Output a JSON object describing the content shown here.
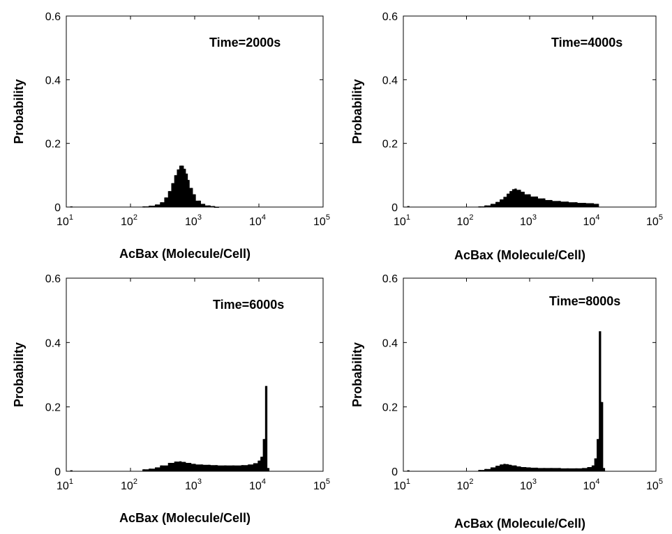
{
  "chart_data": [
    {
      "type": "bar",
      "annotation": "Time=2000s",
      "xlabel": "AcBax (Molecule/Cell)",
      "ylabel": "Probability",
      "xscale": "log",
      "xlim": [
        10,
        100000
      ],
      "ylim": [
        0,
        0.6
      ],
      "xticks": [
        "10",
        "2",
        "10",
        "3",
        "10",
        "4",
        "10",
        "5"
      ],
      "xtick_labels": [
        {
          "base": "10",
          "exp": "1"
        },
        {
          "base": "10",
          "exp": "2"
        },
        {
          "base": "10",
          "exp": "3"
        },
        {
          "base": "10",
          "exp": "4"
        },
        {
          "base": "10",
          "exp": "5"
        }
      ],
      "yticks": [
        "0",
        "0.2",
        "0.4",
        "0.6"
      ],
      "x": [
        12,
        160,
        200,
        250,
        300,
        350,
        400,
        450,
        500,
        550,
        600,
        650,
        700,
        750,
        800,
        900,
        1000,
        1200,
        1400,
        1700,
        2000,
        2300
      ],
      "y": [
        0.002,
        0.002,
        0.004,
        0.008,
        0.015,
        0.03,
        0.05,
        0.075,
        0.1,
        0.118,
        0.13,
        0.13,
        0.12,
        0.105,
        0.085,
        0.06,
        0.04,
        0.02,
        0.01,
        0.005,
        0.003,
        0.001
      ]
    },
    {
      "type": "bar",
      "annotation": "Time=4000s",
      "xlabel": "AcBax (Molecule/Cell)",
      "ylabel": "Probability",
      "xscale": "log",
      "xlim": [
        10,
        100000
      ],
      "ylim": [
        0,
        0.6
      ],
      "xtick_labels": [
        {
          "base": "10",
          "exp": "1"
        },
        {
          "base": "10",
          "exp": "2"
        },
        {
          "base": "10",
          "exp": "3"
        },
        {
          "base": "10",
          "exp": "4"
        },
        {
          "base": "10",
          "exp": "5"
        }
      ],
      "yticks": [
        "0",
        "0.2",
        "0.4",
        "0.6"
      ],
      "x": [
        12,
        160,
        200,
        250,
        300,
        350,
        400,
        450,
        500,
        550,
        600,
        700,
        800,
        1000,
        1300,
        1700,
        2200,
        3000,
        4000,
        5500,
        7500,
        10000,
        12000
      ],
      "y": [
        0.003,
        0.002,
        0.005,
        0.01,
        0.016,
        0.024,
        0.032,
        0.042,
        0.05,
        0.056,
        0.058,
        0.054,
        0.048,
        0.04,
        0.033,
        0.027,
        0.022,
        0.019,
        0.017,
        0.015,
        0.013,
        0.012,
        0.01
      ]
    },
    {
      "type": "bar",
      "annotation": "Time=6000s",
      "xlabel": "AcBax (Molecule/Cell)",
      "ylabel": "Probability",
      "xscale": "log",
      "xlim": [
        10,
        100000
      ],
      "ylim": [
        0,
        0.6
      ],
      "xtick_labels": [
        {
          "base": "10",
          "exp": "1"
        },
        {
          "base": "10",
          "exp": "2"
        },
        {
          "base": "10",
          "exp": "3"
        },
        {
          "base": "10",
          "exp": "4"
        },
        {
          "base": "10",
          "exp": "5"
        }
      ],
      "yticks": [
        "0",
        "0.2",
        "0.4",
        "0.6"
      ],
      "x": [
        12,
        160,
        200,
        250,
        300,
        400,
        500,
        600,
        700,
        850,
        1000,
        1300,
        1700,
        2200,
        3000,
        4000,
        5500,
        7000,
        8500,
        10000,
        11000,
        12000,
        13000,
        14000
      ],
      "y": [
        0.003,
        0.006,
        0.008,
        0.012,
        0.018,
        0.026,
        0.03,
        0.031,
        0.029,
        0.026,
        0.023,
        0.021,
        0.02,
        0.019,
        0.018,
        0.018,
        0.019,
        0.021,
        0.025,
        0.033,
        0.045,
        0.1,
        0.265,
        0.01
      ]
    },
    {
      "type": "bar",
      "annotation": "Time=8000s",
      "xlabel": "AcBax (Molecule/Cell)",
      "ylabel": "Probability",
      "xscale": "log",
      "xlim": [
        10,
        100000
      ],
      "ylim": [
        0,
        0.6
      ],
      "xtick_labels": [
        {
          "base": "10",
          "exp": "1"
        },
        {
          "base": "10",
          "exp": "2"
        },
        {
          "base": "10",
          "exp": "3"
        },
        {
          "base": "10",
          "exp": "4"
        },
        {
          "base": "10",
          "exp": "5"
        }
      ],
      "yticks": [
        "0",
        "0.2",
        "0.4",
        "0.6"
      ],
      "x": [
        12,
        160,
        200,
        250,
        300,
        350,
        400,
        450,
        500,
        600,
        700,
        850,
        1000,
        1300,
        1700,
        2200,
        3000,
        4000,
        5500,
        7000,
        8500,
        10000,
        11000,
        12000,
        13000,
        14000,
        15000
      ],
      "y": [
        0.003,
        0.004,
        0.007,
        0.012,
        0.017,
        0.021,
        0.023,
        0.022,
        0.02,
        0.018,
        0.015,
        0.013,
        0.012,
        0.011,
        0.01,
        0.01,
        0.01,
        0.009,
        0.009,
        0.01,
        0.013,
        0.018,
        0.04,
        0.1,
        0.435,
        0.215,
        0.01
      ]
    }
  ]
}
